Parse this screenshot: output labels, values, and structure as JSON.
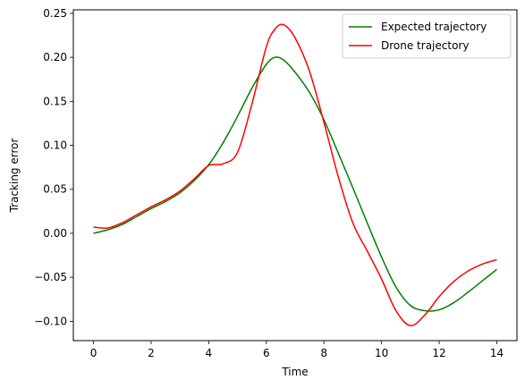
{
  "chart_data": {
    "type": "line",
    "title": "",
    "xlabel": "Time",
    "ylabel": "Tracking error",
    "xlim": [
      -0.7,
      14.7
    ],
    "ylim": [
      -0.122,
      0.254
    ],
    "xticks": [
      0,
      2,
      4,
      6,
      8,
      10,
      12,
      14
    ],
    "xtick_labels": [
      "0",
      "2",
      "4",
      "6",
      "8",
      "10",
      "12",
      "14"
    ],
    "yticks": [
      -0.1,
      -0.05,
      0.0,
      0.05,
      0.1,
      0.15,
      0.2,
      0.25
    ],
    "ytick_labels": [
      "−0.10",
      "−0.05",
      "0.00",
      "0.05",
      "0.10",
      "0.15",
      "0.20",
      "0.25"
    ],
    "grid": false,
    "legend_position": "top-right",
    "series": [
      {
        "name": "Expected trajectory",
        "color": "#008000",
        "x": [
          0,
          0.5,
          1,
          1.5,
          2,
          2.5,
          3,
          3.5,
          4,
          4.5,
          5,
          5.5,
          6,
          6.3,
          6.6,
          7,
          7.5,
          8,
          8.5,
          9,
          9.5,
          10,
          10.5,
          11,
          11.5,
          12,
          12.5,
          13,
          13.5,
          14
        ],
        "y": [
          0.0,
          0.004,
          0.01,
          0.019,
          0.028,
          0.036,
          0.046,
          0.06,
          0.078,
          0.103,
          0.133,
          0.165,
          0.192,
          0.2,
          0.197,
          0.183,
          0.16,
          0.129,
          0.091,
          0.052,
          0.012,
          -0.027,
          -0.061,
          -0.082,
          -0.088,
          -0.087,
          -0.079,
          -0.067,
          -0.054,
          -0.041
        ]
      },
      {
        "name": "Drone trajectory",
        "color": "#ff0000",
        "x": [
          0,
          0.5,
          1,
          1.5,
          2,
          2.5,
          3,
          3.5,
          4,
          4.5,
          5,
          5.5,
          6,
          6.3,
          6.6,
          7,
          7.5,
          8,
          8.5,
          9,
          9.5,
          10,
          10.5,
          11,
          11.5,
          12,
          12.5,
          13,
          13.5,
          14
        ],
        "y": [
          0.007,
          0.006,
          0.012,
          0.021,
          0.03,
          0.038,
          0.048,
          0.062,
          0.077,
          0.079,
          0.092,
          0.147,
          0.212,
          0.232,
          0.237,
          0.222,
          0.184,
          0.126,
          0.064,
          0.012,
          -0.02,
          -0.052,
          -0.088,
          -0.105,
          -0.093,
          -0.072,
          -0.055,
          -0.043,
          -0.035,
          -0.03
        ]
      }
    ]
  }
}
